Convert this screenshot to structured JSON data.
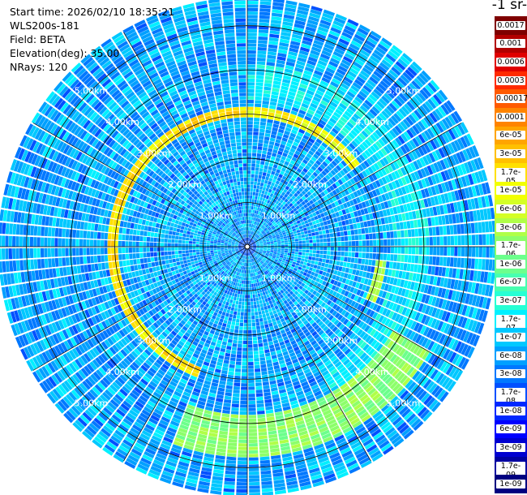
{
  "info": {
    "start_time": "Start time: 2026/02/10 18:35:21",
    "device": "WLS200s-181",
    "field": "Field: BETA",
    "elevation": "Elevation(deg): 35.00",
    "nrays": "NRays: 120"
  },
  "colorbar": {
    "title": "-1 sr-",
    "labels": [
      "0.0017",
      "0.001",
      "0.0006",
      "0.0003",
      "0.00017",
      "0.0001",
      "6e-05",
      "3e-05",
      "1.7e-05",
      "1e-05",
      "6e-06",
      "3e-06",
      "1.7e-06",
      "1e-06",
      "6e-07",
      "3e-07",
      "1.7e-07",
      "1e-07",
      "6e-08",
      "3e-08",
      "1.7e-08",
      "1e-08",
      "6e-09",
      "3e-09",
      "1.7e-09",
      "1e-09"
    ],
    "colors": [
      "#7f0000",
      "#b20000",
      "#e00000",
      "#ff2a00",
      "#ff5a00",
      "#ff8400",
      "#ffa500",
      "#ffc000",
      "#ffe000",
      "#f2ff00",
      "#d4ff26",
      "#b0ff48",
      "#8cff6a",
      "#6cff8c",
      "#48ffb0",
      "#26ffd4",
      "#00f0ff",
      "#00c8ff",
      "#00a0ff",
      "#0078ff",
      "#0050ff",
      "#0028ff",
      "#0000ff",
      "#0000d0",
      "#0000a0",
      "#000080"
    ]
  },
  "chart_data": {
    "type": "heatmap",
    "projection": "polar-ppi",
    "field": "BETA",
    "elevation_deg": 35.0,
    "nrays": 120,
    "range_max_km": 5.6,
    "range_rings_km": [
      1,
      2,
      3,
      4,
      5
    ],
    "ring_labels": [
      "1.00km",
      "2.00km",
      "3.00km",
      "4.00km",
      "5.00km"
    ],
    "spoke_step_deg": 30,
    "value_scale": "log",
    "value_range": [
      1e-09,
      0.0017
    ],
    "features": [
      {
        "range_km": [
          2.95,
          3.15
        ],
        "azimuth_deg": [
          200,
          360
        ],
        "value": 1.7e-05
      },
      {
        "range_km": [
          2.95,
          3.15
        ],
        "azimuth_deg": [
          0,
          55
        ],
        "value": 1e-05
      },
      {
        "range_km": [
          2.95,
          3.15
        ],
        "azimuth_deg": [
          95,
          115
        ],
        "value": 3e-06
      },
      {
        "range_km": [
          3.3,
          4.1
        ],
        "azimuth_deg": [
          0,
          150
        ],
        "value": 1.7e-07
      },
      {
        "range_km": [
          3.8,
          4.8
        ],
        "azimuth_deg": [
          120,
          200
        ],
        "value": 1.7e-06
      }
    ],
    "background_value": 6e-08
  }
}
